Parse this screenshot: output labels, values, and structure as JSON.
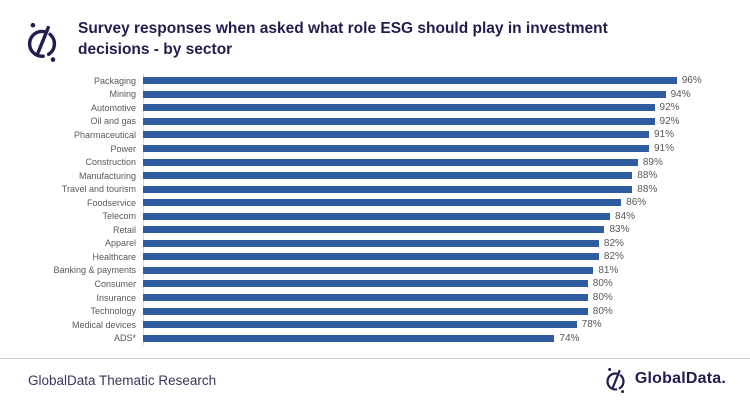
{
  "header": {
    "title": "Survey responses when asked what role ESG should play in investment decisions - by sector",
    "logo_icon": "globaldata-icon"
  },
  "chart_data": {
    "type": "bar",
    "orientation": "horizontal",
    "title": "Survey responses when asked what role ESG should play in investment decisions - by sector",
    "categories": [
      "Packaging",
      "Mining",
      "Automotive",
      "Oil and gas",
      "Pharmaceutical",
      "Power",
      "Construction",
      "Manufacturing",
      "Travel and tourism",
      "Foodservice",
      "Telecom",
      "Retail",
      "Apparel",
      "Healthcare",
      "Banking & payments",
      "Consumer",
      "Insurance",
      "Technology",
      "Medical devices",
      "ADS*"
    ],
    "values": [
      96,
      94,
      92,
      92,
      91,
      91,
      89,
      88,
      88,
      86,
      84,
      83,
      82,
      82,
      81,
      80,
      80,
      80,
      78,
      74
    ],
    "value_suffix": "%",
    "xlabel": "",
    "ylabel": "",
    "xlim": [
      0,
      100
    ],
    "grid": false,
    "legend": false,
    "data_labels": true,
    "bar_color": "#2F5CA0"
  },
  "footer": {
    "left_text": "GlobalData Thematic Research",
    "brand_text": "GlobalData.",
    "brand_icon": "globaldata-icon"
  },
  "colors": {
    "bar": "#2F5CA0",
    "title": "#241B4E",
    "axis_label": "#595959",
    "axis_line": "#D9D9D9",
    "divider": "#C9C9C9",
    "footer_text": "#3A355C",
    "background": "#FFFFFF"
  }
}
